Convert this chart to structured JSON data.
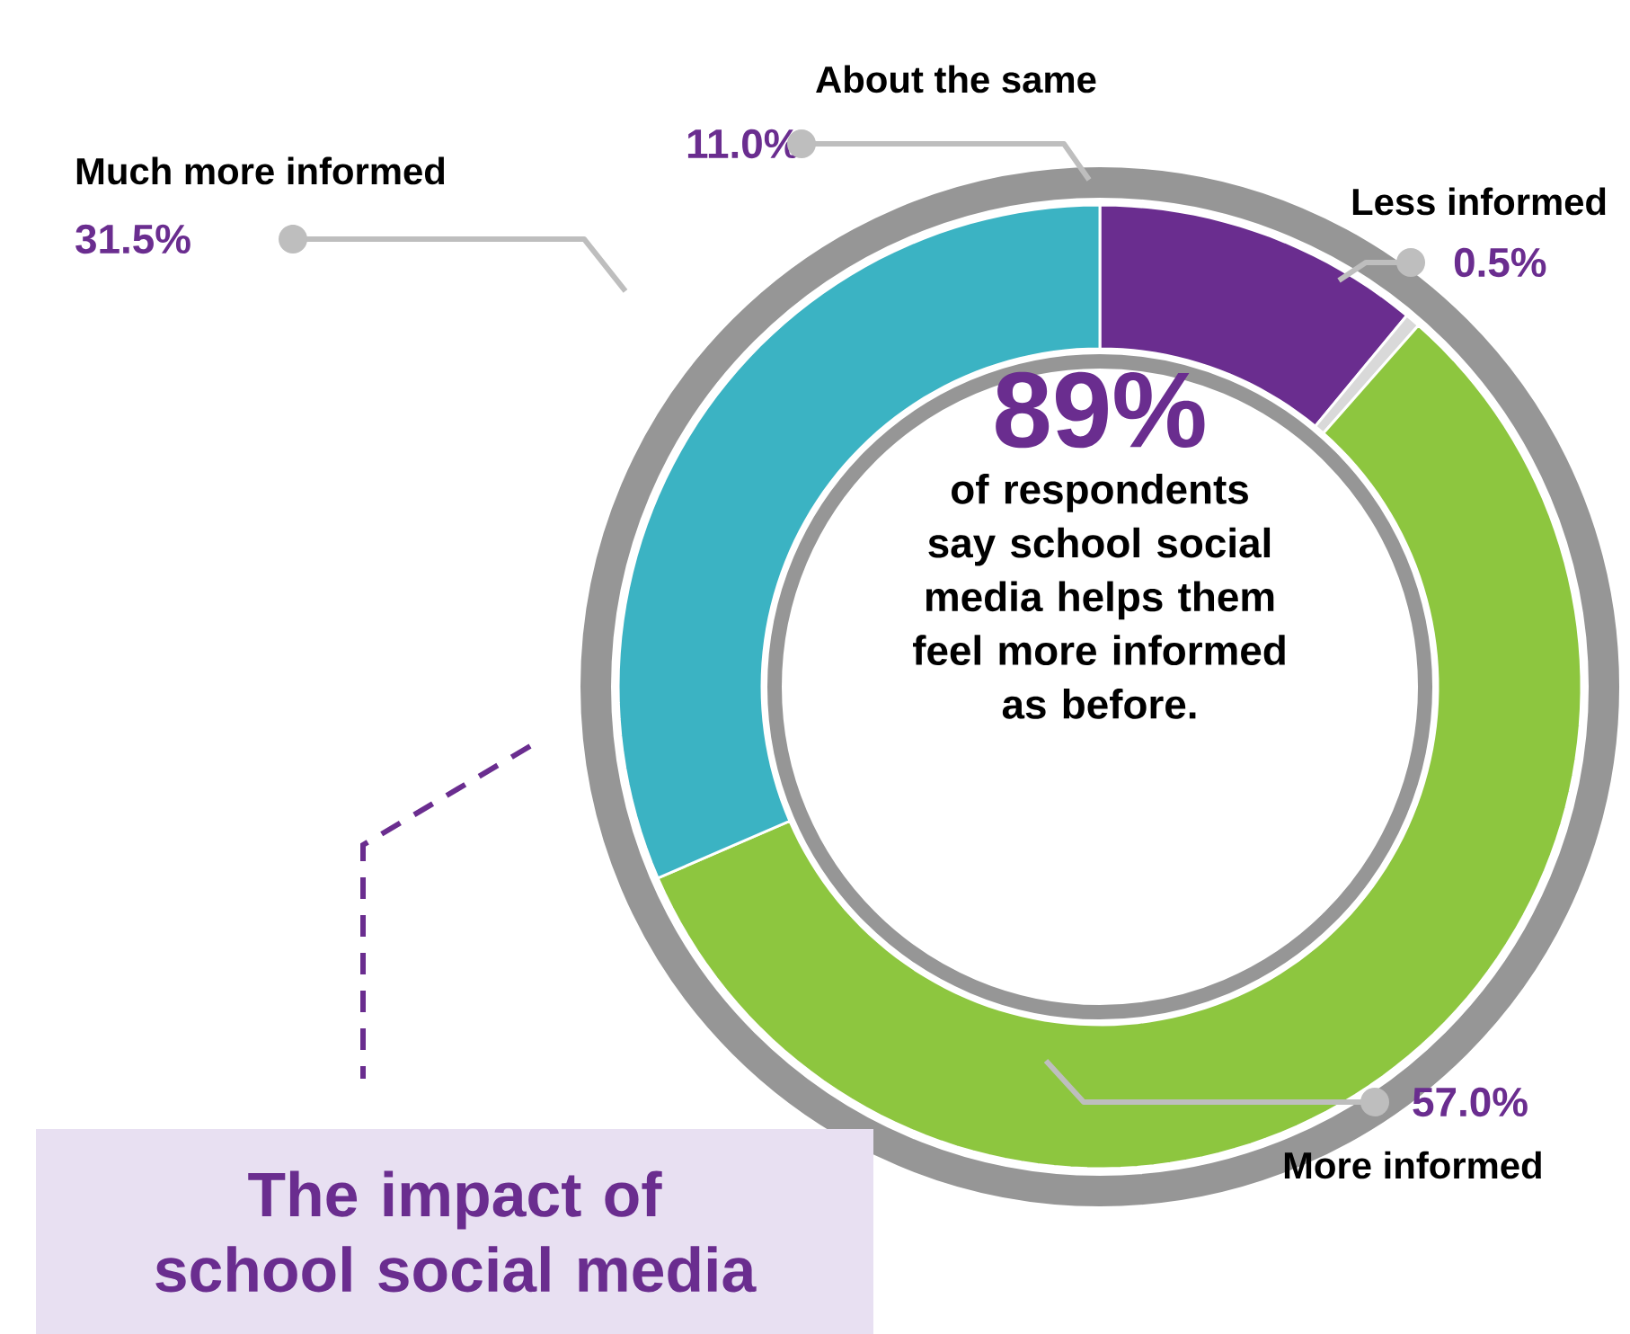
{
  "chart_data": {
    "type": "donut",
    "title": "The impact of school social media",
    "categories": [
      "About the same",
      "Less informed",
      "More informed",
      "Much more informed"
    ],
    "values": [
      11.0,
      0.5,
      57.0,
      31.5
    ],
    "value_labels": [
      "11.0%",
      "0.5%",
      "57.0%",
      "31.5%"
    ],
    "colors": [
      "#6a2d8f",
      "#d9d9d9",
      "#8dc63f",
      "#3bb3c3"
    ],
    "annotations": [
      "89%",
      "of respondents say school social media helps them feel more informed as before."
    ]
  }
}
